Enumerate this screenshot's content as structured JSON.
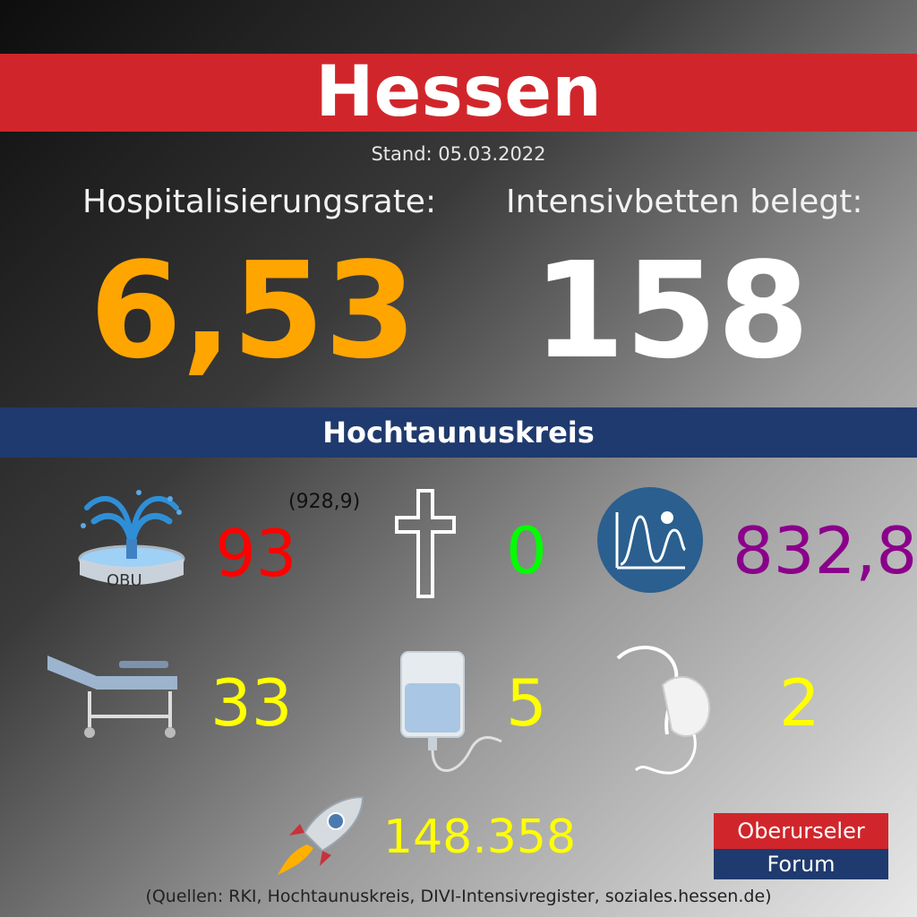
{
  "title": "Hessen",
  "stand": "Stand: 05.03.2022",
  "hessen": {
    "hosp_label": "Hospitalisierungsrate:",
    "hosp_value": "6,53",
    "icu_label": "Intensivbetten belegt:",
    "icu_value": "158"
  },
  "district": "Hochtaunuskreis",
  "stats": {
    "new_cases": "93",
    "new_cases_note": "(928,9)",
    "obu_label": "OBU",
    "deaths": "0",
    "incidence": "832,8",
    "hospital": "33",
    "icu": "5",
    "ventilated": "2",
    "vaccinations": "148.358"
  },
  "logo": {
    "line1": "Oberurseler",
    "line2": "Forum"
  },
  "sources": "(Quellen: RKI, Hochtaunuskreis, DIVI-Intensivregister, soziales.hessen.de)",
  "colors": {
    "red": "#d0262b",
    "blue": "#1f3a6e",
    "orange": "#ffa500",
    "cases": "#ff0000",
    "deaths": "#00ff00",
    "incidence": "#8b008b",
    "yellow": "#ffff00"
  },
  "icons": [
    "fountain-icon",
    "cross-icon",
    "incidence-chart-icon",
    "stretcher-icon",
    "iv-bag-icon",
    "oxygen-mask-icon",
    "rocket-icon"
  ]
}
